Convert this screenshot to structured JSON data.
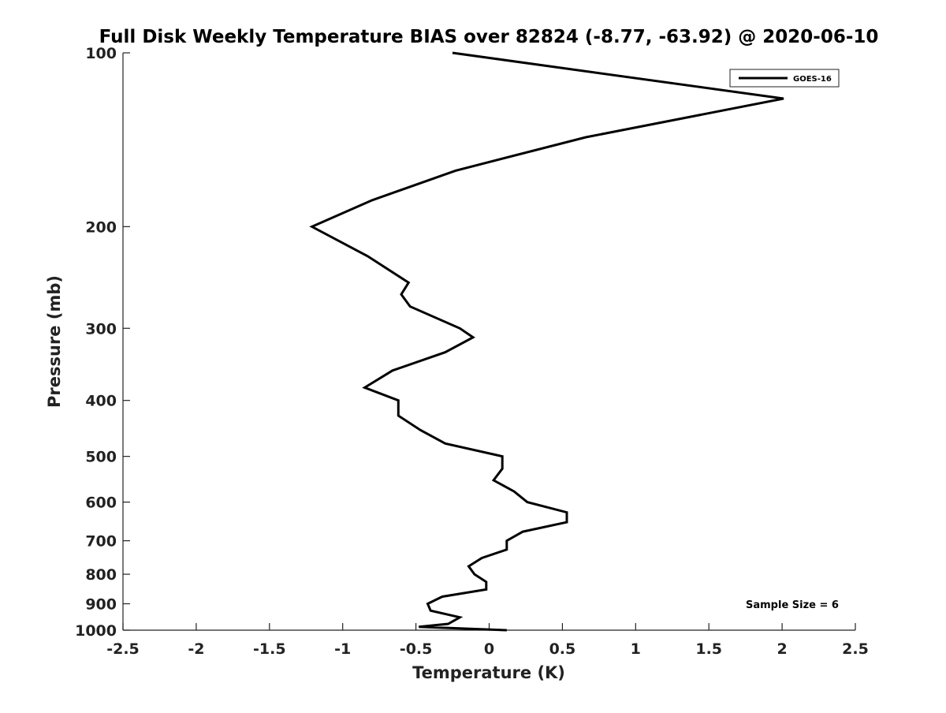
{
  "chart_data": {
    "type": "line",
    "title": "Full Disk Weekly Temperature BIAS over 82824 (-8.77, -63.92) @ 2020-06-10",
    "xlabel": "Temperature (K)",
    "ylabel": "Pressure (mb)",
    "xlim": [
      -2.5,
      2.5
    ],
    "ylim": [
      1000,
      100
    ],
    "y_scale": "log",
    "y_reversed": true,
    "x_ticks": [
      -2.5,
      -2,
      -1.5,
      -1,
      -0.5,
      0,
      0.5,
      1,
      1.5,
      2,
      2.5
    ],
    "x_tick_labels": [
      "-2.5",
      "-2",
      "-1.5",
      "-1",
      "-0.5",
      "0",
      "0.5",
      "1",
      "1.5",
      "2",
      "2.5"
    ],
    "y_ticks": [
      100,
      200,
      300,
      400,
      500,
      600,
      700,
      800,
      900,
      1000
    ],
    "y_tick_labels": [
      "100",
      "200",
      "300",
      "400",
      "500",
      "600",
      "700",
      "800",
      "900",
      "1000"
    ],
    "grid": false,
    "legend_position": "top-right",
    "annotation": "Sample Size = 6",
    "series": [
      {
        "name": "GOES-16",
        "color": "#000000",
        "points": [
          {
            "x": -0.25,
            "y": 100
          },
          {
            "x": 2.01,
            "y": 120
          },
          {
            "x": 0.66,
            "y": 140
          },
          {
            "x": -0.23,
            "y": 160
          },
          {
            "x": -0.8,
            "y": 180
          },
          {
            "x": -1.21,
            "y": 200
          },
          {
            "x": -0.83,
            "y": 225
          },
          {
            "x": -0.55,
            "y": 250
          },
          {
            "x": -0.6,
            "y": 262
          },
          {
            "x": -0.54,
            "y": 275
          },
          {
            "x": -0.2,
            "y": 300
          },
          {
            "x": -0.11,
            "y": 311
          },
          {
            "x": -0.3,
            "y": 330
          },
          {
            "x": -0.66,
            "y": 355
          },
          {
            "x": -0.85,
            "y": 380
          },
          {
            "x": -0.62,
            "y": 400
          },
          {
            "x": -0.62,
            "y": 425
          },
          {
            "x": -0.47,
            "y": 450
          },
          {
            "x": -0.3,
            "y": 475
          },
          {
            "x": 0.09,
            "y": 500
          },
          {
            "x": 0.09,
            "y": 525
          },
          {
            "x": 0.03,
            "y": 550
          },
          {
            "x": 0.17,
            "y": 575
          },
          {
            "x": 0.26,
            "y": 600
          },
          {
            "x": 0.53,
            "y": 625
          },
          {
            "x": 0.53,
            "y": 650
          },
          {
            "x": 0.23,
            "y": 675
          },
          {
            "x": 0.12,
            "y": 700
          },
          {
            "x": 0.12,
            "y": 725
          },
          {
            "x": -0.05,
            "y": 750
          },
          {
            "x": -0.14,
            "y": 775
          },
          {
            "x": -0.1,
            "y": 800
          },
          {
            "x": -0.02,
            "y": 825
          },
          {
            "x": -0.02,
            "y": 850
          },
          {
            "x": -0.32,
            "y": 875
          },
          {
            "x": -0.42,
            "y": 900
          },
          {
            "x": -0.4,
            "y": 925
          },
          {
            "x": -0.2,
            "y": 950
          },
          {
            "x": -0.28,
            "y": 975
          },
          {
            "x": -0.48,
            "y": 987
          },
          {
            "x": 0.12,
            "y": 1000
          }
        ]
      }
    ]
  }
}
